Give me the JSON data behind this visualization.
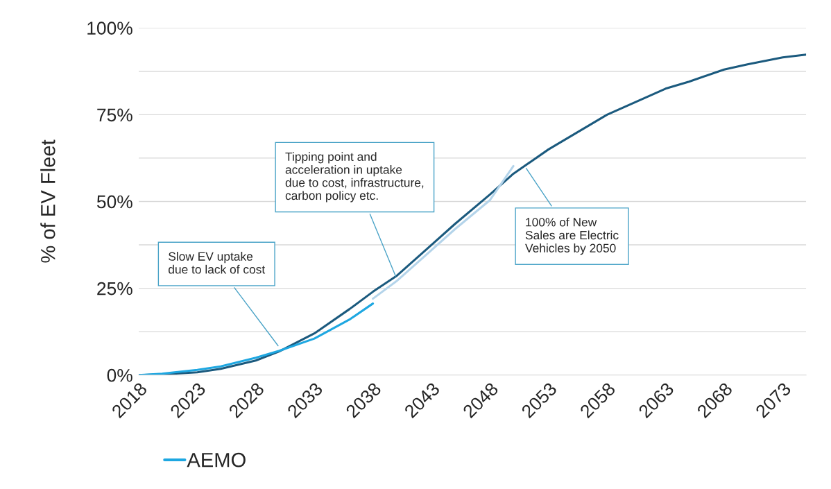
{
  "chart_data": {
    "type": "line",
    "ylabel": "% of EV Fleet",
    "x": [
      2018,
      2020,
      2023,
      2025,
      2028,
      2030,
      2033,
      2036,
      2038,
      2040,
      2043,
      2045,
      2048,
      2050,
      2053,
      2055,
      2058,
      2060,
      2063,
      2065,
      2068,
      2070,
      2073,
      2075
    ],
    "series": [
      {
        "color": "#1b5a7e",
        "values": [
          0,
          0.2,
          0.8,
          1.8,
          4.2,
          6.8,
          12,
          19,
          24,
          28.5,
          37.5,
          43.5,
          52,
          58,
          65,
          69,
          75,
          78,
          82.5,
          84.5,
          88,
          89.5,
          91.5,
          92.3
        ]
      },
      {
        "color": "#b4d4ea",
        "x": [
          2038,
          2040,
          2043,
          2045,
          2048,
          2050
        ],
        "values": [
          22,
          27,
          36,
          42,
          50.4,
          60.2
        ]
      },
      {
        "name": "AEMO",
        "color": "#1ea7e1",
        "x": [
          2018,
          2020,
          2023,
          2025,
          2028,
          2030,
          2033,
          2036,
          2038
        ],
        "values": [
          0,
          0.4,
          1.5,
          2.5,
          5,
          7,
          10.5,
          16,
          20.6
        ]
      }
    ],
    "xlim": [
      2018,
      2075
    ],
    "xticks": [
      2018,
      2023,
      2028,
      2033,
      2038,
      2043,
      2048,
      2053,
      2058,
      2063,
      2068,
      2073
    ],
    "ylim": [
      0,
      100
    ],
    "yticks": [
      {
        "value": 0,
        "label": "0%"
      },
      {
        "value": 12.5,
        "label": null
      },
      {
        "value": 25,
        "label": "25%"
      },
      {
        "value": 37.5,
        "label": null
      },
      {
        "value": 50,
        "label": "50%"
      },
      {
        "value": 62.5,
        "label": null
      },
      {
        "value": 75,
        "label": "75%"
      },
      {
        "value": 87.5,
        "label": null
      },
      {
        "value": 100,
        "label": "100%"
      }
    ],
    "grid": "y",
    "legend": "bottom",
    "annotations": [
      {
        "text": "Slow EV uptake\ndue to lack of cost",
        "x": 2030,
        "y": 8
      },
      {
        "text": "Tipping point and\nacceleration in uptake\ndue to cost, infrastructure,\ncarbon policy etc.",
        "x": 2040,
        "y": 28
      },
      {
        "text": "100% of New\nSales are Electric\nVehicles by 2050",
        "x": 2051,
        "y": 60
      }
    ]
  }
}
